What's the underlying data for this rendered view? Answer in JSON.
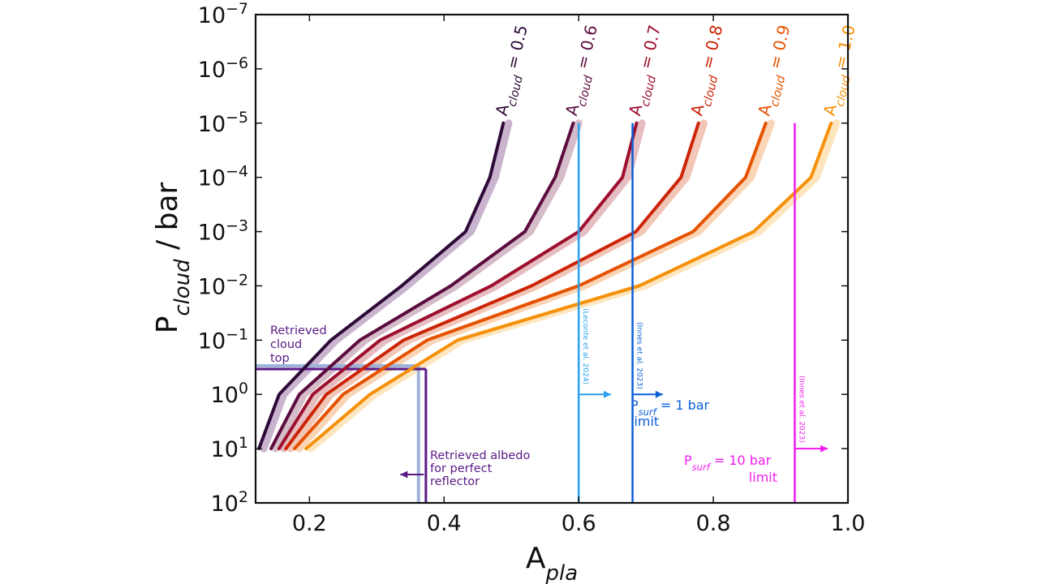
{
  "chart_data": {
    "type": "line",
    "xlabel": {
      "main": "A",
      "sub": "pla"
    },
    "ylabel": {
      "main": "P",
      "sub": "cloud",
      "rest": " / bar"
    },
    "xlim": [
      0.12,
      1.0
    ],
    "ylim_log_bar": [
      100,
      1e-07
    ],
    "y_scale": "log",
    "y_inverted": true,
    "grid": false,
    "x_ticks": [
      {
        "value": 0.2,
        "label": "0.2"
      },
      {
        "value": 0.4,
        "label": "0.4"
      },
      {
        "value": 0.6,
        "label": "0.6"
      },
      {
        "value": 0.8,
        "label": "0.8"
      },
      {
        "value": 1.0,
        "label": "1.0"
      }
    ],
    "y_ticks": [
      {
        "value": 1e-07,
        "base": "10",
        "exp": "−7"
      },
      {
        "value": 1e-06,
        "base": "10",
        "exp": "−6"
      },
      {
        "value": 1e-05,
        "base": "10",
        "exp": "−5"
      },
      {
        "value": 0.0001,
        "base": "10",
        "exp": "−4"
      },
      {
        "value": 0.001,
        "base": "10",
        "exp": "−3"
      },
      {
        "value": 0.01,
        "base": "10",
        "exp": "−2"
      },
      {
        "value": 0.1,
        "base": "10",
        "exp": "−1"
      },
      {
        "value": 1,
        "base": "10",
        "exp": "0"
      },
      {
        "value": 10,
        "base": "10",
        "exp": "1"
      },
      {
        "value": 100,
        "base": "10",
        "exp": "2"
      }
    ],
    "pressures": [
      10,
      1,
      0.1,
      0.01,
      0.001,
      0.0001,
      1e-05
    ],
    "series": [
      {
        "name": {
          "main": "A",
          "sub": "cloud",
          "rest": " = 0.5"
        },
        "color": "#2e0a38",
        "band_color": "#bfa6c6",
        "albedo": [
          0.125,
          0.155,
          0.232,
          0.337,
          0.432,
          0.468,
          0.488
        ],
        "band": [
          0.132,
          0.162,
          0.24,
          0.345,
          0.44,
          0.476,
          0.496
        ]
      },
      {
        "name": {
          "main": "A",
          "sub": "cloud",
          "rest": " = 0.6"
        },
        "color": "#5c0c3e",
        "band_color": "#ceb0be",
        "albedo": [
          0.143,
          0.185,
          0.275,
          0.41,
          0.52,
          0.565,
          0.592
        ],
        "band": [
          0.15,
          0.192,
          0.283,
          0.418,
          0.528,
          0.573,
          0.6
        ]
      },
      {
        "name": {
          "main": "A",
          "sub": "cloud",
          "rest": " = 0.7"
        },
        "color": "#9e0f2e",
        "band_color": "#e2b2b6",
        "albedo": [
          0.155,
          0.205,
          0.305,
          0.47,
          0.6,
          0.665,
          0.686
        ],
        "band": [
          0.162,
          0.212,
          0.313,
          0.478,
          0.608,
          0.673,
          0.694
        ]
      },
      {
        "name": {
          "main": "A",
          "sub": "cloud",
          "rest": " = 0.8"
        },
        "color": "#cc2406",
        "band_color": "#f0bcaa",
        "albedo": [
          0.165,
          0.225,
          0.34,
          0.53,
          0.685,
          0.752,
          0.778
        ],
        "band": [
          0.172,
          0.232,
          0.348,
          0.538,
          0.693,
          0.76,
          0.786
        ]
      },
      {
        "name": {
          "main": "A",
          "sub": "cloud",
          "rest": " = 0.9"
        },
        "color": "#e65200",
        "band_color": "#f8cca8",
        "albedo": [
          0.178,
          0.25,
          0.375,
          0.6,
          0.77,
          0.848,
          0.878
        ],
        "band": [
          0.185,
          0.257,
          0.383,
          0.608,
          0.778,
          0.856,
          0.886
        ]
      },
      {
        "name": {
          "main": "A",
          "sub": "cloud",
          "rest": " = 1.0"
        },
        "color": "#f5900a",
        "band_color": "#fde0b2",
        "albedo": [
          0.195,
          0.29,
          0.42,
          0.69,
          0.86,
          0.945,
          0.975
        ],
        "band": [
          0.202,
          0.297,
          0.428,
          0.698,
          0.868,
          0.953,
          0.983
        ]
      }
    ],
    "vlines": [
      {
        "id": "leconte",
        "x": 0.6,
        "color": "#2aa0ee",
        "p_top": 1e-05,
        "p_bottom": 100,
        "arrow_at": 1,
        "arrow_to": 0.648,
        "label": "(Leconte et al. 2024)"
      },
      {
        "id": "innes1",
        "x": 0.68,
        "color": "#0a5fd8",
        "p_top": 1e-05,
        "p_bottom": 100,
        "arrow_at": 1,
        "arrow_to": 0.725,
        "label": "(Innes et al. 2023)"
      },
      {
        "id": "innes10",
        "x": 0.921,
        "color": "#f01cec",
        "p_top": 1e-05,
        "p_bottom": 100,
        "arrow_at": 10,
        "arrow_to": 0.97,
        "label": "(Innes et al. 2023)"
      }
    ],
    "retrieved": {
      "color": "#5a1a86",
      "light": "#9fb3d8",
      "cloud_top_p": 0.33,
      "albedo_dark": 0.373,
      "albedo_light": 0.362,
      "arrow_p": 30,
      "arrow_from": 0.37,
      "arrow_to": 0.335
    },
    "annotations": {
      "cloud_top": [
        "Retrieved",
        "cloud",
        "top"
      ],
      "albedo": [
        "Retrieved albedo",
        "for perfect",
        "reflector"
      ],
      "psurf1": {
        "main": "P",
        "sub": "surf",
        "rest": " = 1 bar",
        "line2": "limit"
      },
      "psurf10": {
        "main": "P",
        "sub": "surf",
        "rest": " = 10 bar",
        "line2": "limit"
      }
    }
  }
}
